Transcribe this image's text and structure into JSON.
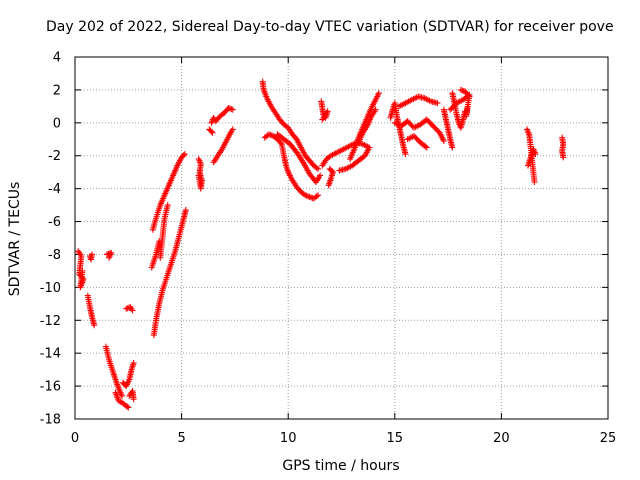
{
  "chart_data": {
    "type": "scatter",
    "title": "Day 202 of 2022, Sidereal Day-to-day VTEC variation (SDTVAR) for receiver pove",
    "xlabel": "GPS time / hours",
    "ylabel": "SDTVAR / TECUs",
    "xlim": [
      0,
      25
    ],
    "ylim": [
      -18,
      4
    ],
    "xticks": [
      0,
      5,
      10,
      15,
      20,
      25
    ],
    "yticks": [
      -18,
      -16,
      -14,
      -12,
      -10,
      -8,
      -6,
      -4,
      -2,
      0,
      2,
      4
    ],
    "grid": true,
    "marker": "+",
    "color": "#ff0000",
    "series": [
      {
        "name": "SDTVAR",
        "segments": [
          [
            [
              0.15,
              -7.8
            ],
            [
              0.3,
              -8.1
            ],
            [
              0.2,
              -9.2
            ],
            [
              0.4,
              -9.5
            ],
            [
              0.25,
              -10.0
            ],
            [
              0.35,
              -9.0
            ]
          ],
          [
            [
              0.7,
              -8.1
            ],
            [
              0.75,
              -8.3
            ],
            [
              0.8,
              -8.0
            ]
          ],
          [
            [
              0.6,
              -10.5
            ],
            [
              0.7,
              -11.2
            ],
            [
              0.8,
              -11.8
            ],
            [
              0.9,
              -12.3
            ]
          ],
          [
            [
              1.5,
              -8.0
            ],
            [
              1.7,
              -7.9
            ],
            [
              1.6,
              -8.2
            ]
          ],
          [
            [
              1.45,
              -13.6
            ],
            [
              1.6,
              -14.4
            ],
            [
              1.8,
              -15.2
            ],
            [
              1.95,
              -15.8
            ],
            [
              2.1,
              -16.3
            ],
            [
              2.2,
              -16.6
            ]
          ],
          [
            [
              1.9,
              -16.4
            ],
            [
              2.05,
              -16.9
            ],
            [
              2.2,
              -17.0
            ],
            [
              2.4,
              -17.2
            ],
            [
              2.5,
              -17.3
            ]
          ],
          [
            [
              2.25,
              -15.8
            ],
            [
              2.4,
              -16.0
            ],
            [
              2.55,
              -15.6
            ],
            [
              2.65,
              -15.0
            ],
            [
              2.75,
              -14.6
            ]
          ],
          [
            [
              2.55,
              -16.6
            ],
            [
              2.7,
              -16.3
            ],
            [
              2.75,
              -16.8
            ]
          ],
          [
            [
              2.4,
              -11.3
            ],
            [
              2.6,
              -11.2
            ],
            [
              2.7,
              -11.4
            ]
          ],
          [
            [
              3.65,
              -6.5
            ],
            [
              3.8,
              -5.8
            ],
            [
              4.0,
              -5.0
            ],
            [
              4.2,
              -4.4
            ],
            [
              4.4,
              -3.8
            ],
            [
              4.6,
              -3.2
            ],
            [
              4.8,
              -2.6
            ],
            [
              5.0,
              -2.1
            ],
            [
              5.15,
              -1.9
            ]
          ],
          [
            [
              3.6,
              -8.8
            ],
            [
              3.8,
              -8.0
            ],
            [
              3.95,
              -7.2
            ]
          ],
          [
            [
              3.7,
              -12.9
            ],
            [
              3.8,
              -12.0
            ],
            [
              3.95,
              -11.0
            ],
            [
              4.1,
              -10.2
            ],
            [
              4.3,
              -9.4
            ],
            [
              4.5,
              -8.6
            ],
            [
              4.7,
              -7.8
            ],
            [
              4.9,
              -6.8
            ],
            [
              5.1,
              -5.8
            ],
            [
              5.2,
              -5.3
            ]
          ],
          [
            [
              4.0,
              -8.2
            ],
            [
              4.1,
              -7.0
            ],
            [
              4.2,
              -5.8
            ],
            [
              4.35,
              -5.0
            ]
          ],
          [
            [
              5.8,
              -2.2
            ],
            [
              5.9,
              -2.5
            ],
            [
              5.85,
              -3.0
            ],
            [
              5.95,
              -3.5
            ],
            [
              5.9,
              -4.0
            ],
            [
              5.8,
              -3.2
            ]
          ],
          [
            [
              6.4,
              0.0
            ],
            [
              6.5,
              0.3
            ],
            [
              6.6,
              0.1
            ],
            [
              6.8,
              0.4
            ],
            [
              7.0,
              0.6
            ],
            [
              7.2,
              0.9
            ],
            [
              7.4,
              0.8
            ]
          ],
          [
            [
              6.3,
              -0.4
            ],
            [
              6.45,
              -0.6
            ]
          ],
          [
            [
              6.5,
              -2.4
            ],
            [
              6.7,
              -2.0
            ],
            [
              6.9,
              -1.6
            ],
            [
              7.1,
              -1.1
            ],
            [
              7.3,
              -0.6
            ],
            [
              7.4,
              -0.4
            ]
          ],
          [
            [
              8.8,
              2.5
            ],
            [
              8.85,
              2.0
            ],
            [
              9.0,
              1.5
            ],
            [
              9.2,
              1.0
            ],
            [
              9.4,
              0.6
            ],
            [
              9.6,
              0.2
            ],
            [
              9.8,
              -0.1
            ],
            [
              10.0,
              -0.3
            ],
            [
              10.2,
              -0.7
            ],
            [
              10.4,
              -1.0
            ],
            [
              10.6,
              -1.5
            ],
            [
              10.8,
              -2.0
            ],
            [
              11.0,
              -2.3
            ],
            [
              11.2,
              -2.6
            ],
            [
              11.4,
              -2.8
            ]
          ],
          [
            [
              8.9,
              -0.9
            ],
            [
              9.1,
              -0.7
            ],
            [
              9.3,
              -0.8
            ],
            [
              9.5,
              -1.0
            ],
            [
              9.7,
              -1.3
            ],
            [
              9.8,
              -2.0
            ],
            [
              9.9,
              -2.6
            ],
            [
              10.0,
              -3.0
            ],
            [
              10.2,
              -3.5
            ],
            [
              10.4,
              -3.9
            ],
            [
              10.6,
              -4.2
            ],
            [
              10.8,
              -4.4
            ],
            [
              11.0,
              -4.5
            ],
            [
              11.2,
              -4.6
            ],
            [
              11.4,
              -4.4
            ]
          ],
          [
            [
              9.5,
              -0.7
            ],
            [
              9.8,
              -1.0
            ],
            [
              10.1,
              -1.3
            ],
            [
              10.4,
              -1.8
            ],
            [
              10.7,
              -2.4
            ],
            [
              11.0,
              -3.1
            ],
            [
              11.3,
              -3.6
            ],
            [
              11.5,
              -3.2
            ]
          ],
          [
            [
              11.55,
              1.3
            ],
            [
              11.6,
              0.9
            ],
            [
              11.65,
              0.5
            ],
            [
              11.75,
              0.3
            ],
            [
              11.85,
              0.7
            ],
            [
              11.6,
              0.2
            ]
          ],
          [
            [
              11.6,
              -2.6
            ],
            [
              11.8,
              -2.2
            ],
            [
              12.0,
              -2.0
            ],
            [
              12.3,
              -1.8
            ],
            [
              12.6,
              -1.6
            ],
            [
              12.9,
              -1.4
            ],
            [
              13.2,
              -1.2
            ],
            [
              13.5,
              -1.3
            ],
            [
              13.8,
              -1.5
            ]
          ],
          [
            [
              11.9,
              -3.8
            ],
            [
              12.0,
              -3.4
            ],
            [
              12.1,
              -3.0
            ],
            [
              11.95,
              -2.8
            ]
          ],
          [
            [
              12.4,
              -2.9
            ],
            [
              12.7,
              -2.8
            ],
            [
              13.0,
              -2.6
            ],
            [
              13.3,
              -2.3
            ],
            [
              13.6,
              -2.0
            ],
            [
              13.8,
              -1.5
            ]
          ],
          [
            [
              12.9,
              -2.2
            ],
            [
              13.1,
              -1.6
            ],
            [
              13.3,
              -0.9
            ],
            [
              13.5,
              -0.3
            ],
            [
              13.7,
              0.3
            ],
            [
              13.9,
              0.9
            ],
            [
              14.1,
              1.4
            ],
            [
              14.25,
              1.8
            ]
          ],
          [
            [
              13.3,
              -1.2
            ],
            [
              13.5,
              -0.6
            ],
            [
              13.7,
              -0.2
            ],
            [
              13.9,
              0.4
            ],
            [
              14.1,
              0.8
            ]
          ],
          [
            [
              14.8,
              0.3
            ],
            [
              14.9,
              0.8
            ],
            [
              15.0,
              1.2
            ],
            [
              15.1,
              0.4
            ],
            [
              15.2,
              -0.2
            ],
            [
              15.3,
              -0.8
            ],
            [
              15.4,
              -1.4
            ],
            [
              15.5,
              -1.9
            ]
          ],
          [
            [
              15.2,
              1.0
            ],
            [
              15.5,
              1.2
            ],
            [
              15.8,
              1.4
            ],
            [
              16.1,
              1.6
            ],
            [
              16.4,
              1.5
            ],
            [
              16.7,
              1.3
            ],
            [
              17.0,
              1.2
            ]
          ],
          [
            [
              15.0,
              0.0
            ],
            [
              15.3,
              -0.2
            ],
            [
              15.6,
              0.1
            ],
            [
              15.9,
              -0.3
            ],
            [
              16.2,
              -0.1
            ],
            [
              16.5,
              0.2
            ],
            [
              16.8,
              -0.2
            ],
            [
              17.1,
              -0.6
            ],
            [
              17.3,
              -1.1
            ]
          ],
          [
            [
              15.6,
              -1.0
            ],
            [
              15.9,
              -0.8
            ],
            [
              16.2,
              -1.2
            ],
            [
              16.5,
              -1.5
            ]
          ],
          [
            [
              17.3,
              0.8
            ],
            [
              17.4,
              0.2
            ],
            [
              17.5,
              -0.4
            ],
            [
              17.6,
              -1.0
            ],
            [
              17.7,
              -1.5
            ]
          ],
          [
            [
              17.7,
              1.8
            ],
            [
              17.8,
              1.2
            ],
            [
              17.9,
              0.5
            ],
            [
              18.0,
              0.0
            ],
            [
              18.1,
              -0.3
            ],
            [
              18.2,
              0.2
            ],
            [
              18.3,
              0.7
            ]
          ],
          [
            [
              17.6,
              0.8
            ],
            [
              17.9,
              1.2
            ],
            [
              18.2,
              1.4
            ],
            [
              18.5,
              1.7
            ],
            [
              18.35,
              0.4
            ],
            [
              18.4,
              0.9
            ]
          ],
          [
            [
              18.1,
              2.0
            ],
            [
              18.3,
              1.9
            ],
            [
              18.5,
              1.6
            ]
          ],
          [
            [
              21.2,
              -0.4
            ],
            [
              21.3,
              -0.7
            ],
            [
              21.35,
              -1.2
            ],
            [
              21.4,
              -1.8
            ],
            [
              21.45,
              -2.4
            ],
            [
              21.5,
              -3.0
            ],
            [
              21.55,
              -3.6
            ]
          ],
          [
            [
              21.25,
              -2.6
            ],
            [
              21.35,
              -2.2
            ],
            [
              21.5,
              -1.6
            ],
            [
              21.6,
              -1.9
            ]
          ],
          [
            [
              22.85,
              -0.9
            ],
            [
              22.9,
              -1.3
            ],
            [
              22.85,
              -1.7
            ],
            [
              22.9,
              -2.1
            ]
          ]
        ]
      }
    ]
  }
}
